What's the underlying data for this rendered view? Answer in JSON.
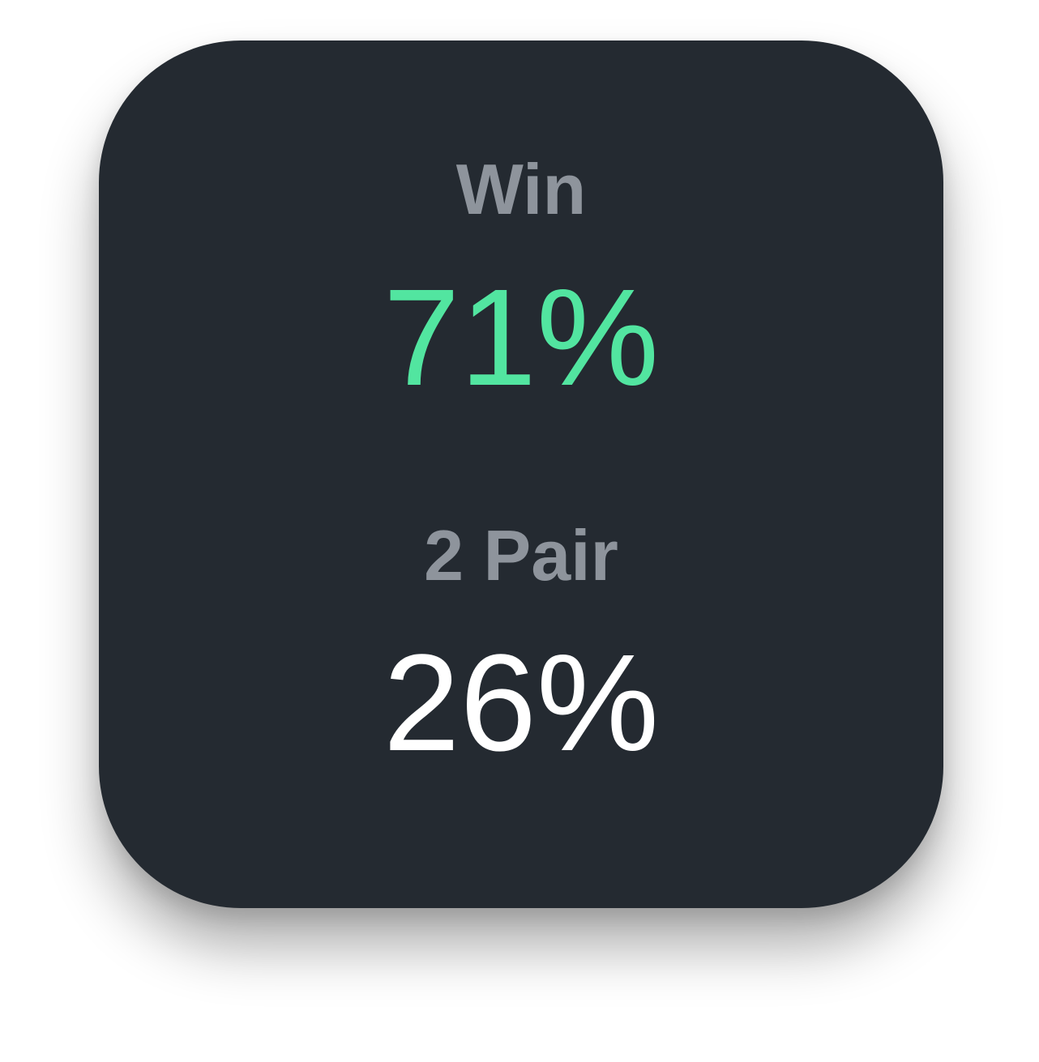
{
  "widget": {
    "background_color": "#242a31",
    "stats": [
      {
        "label": "Win",
        "value": "71%",
        "label_color": "#8e949c",
        "value_color": "#52e5a0"
      },
      {
        "label": "2 Pair",
        "value": "26%",
        "label_color": "#8e949c",
        "value_color": "#ffffff"
      }
    ]
  }
}
